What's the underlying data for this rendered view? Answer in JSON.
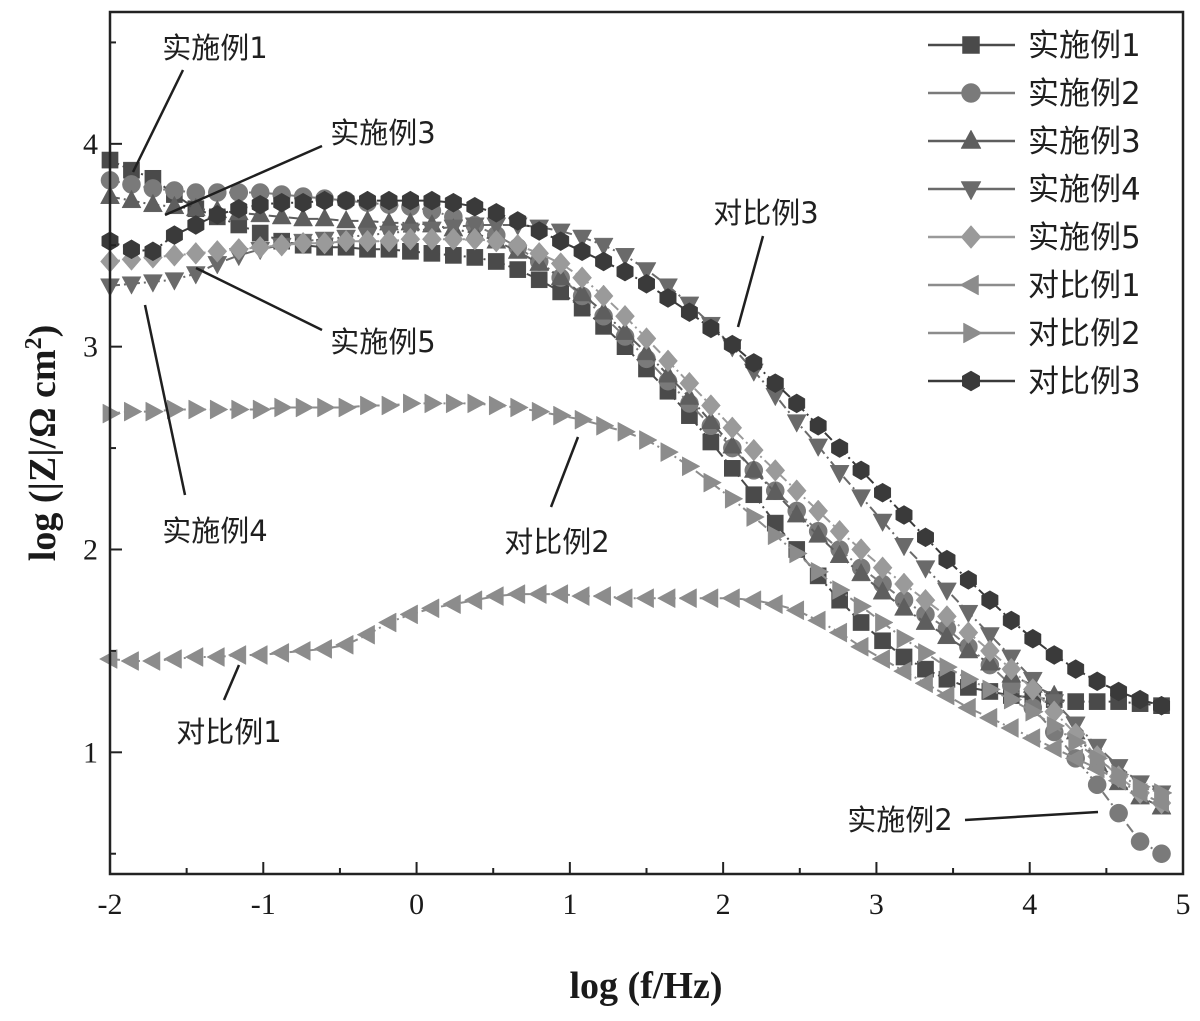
{
  "chart_data": {
    "type": "line",
    "xlabel": "log (f/Hz)",
    "ylabel_main": "log (|Z|/Ω cm",
    "ylabel_sup": "2",
    "ylabel_close": ")",
    "xlim": [
      -2,
      5
    ],
    "ylim": [
      0.4,
      4.65
    ],
    "xticks": [
      -2,
      -1,
      0,
      1,
      2,
      3,
      4,
      5
    ],
    "yticks": [
      1,
      2,
      3,
      4
    ],
    "grid": false,
    "legend_position": "top-right",
    "series": [
      {
        "name": "实施例1",
        "marker": "square",
        "color": "#4a4a4a",
        "x": [
          -2,
          -1.86,
          -1.72,
          -1.58,
          -1.44,
          -1.3,
          -1.16,
          -1.02,
          -0.88,
          -0.74,
          -0.6,
          -0.46,
          -0.32,
          -0.18,
          -0.04,
          0.1,
          0.24,
          0.38,
          0.52,
          0.66,
          0.8,
          0.94,
          1.08,
          1.22,
          1.36,
          1.5,
          1.64,
          1.78,
          1.92,
          2.06,
          2.2,
          2.34,
          2.48,
          2.62,
          2.76,
          2.9,
          3.04,
          3.18,
          3.32,
          3.46,
          3.6,
          3.74,
          3.88,
          4.02,
          4.16,
          4.3,
          4.44,
          4.58,
          4.72,
          4.86
        ],
        "y": [
          3.92,
          3.87,
          3.83,
          3.75,
          3.68,
          3.64,
          3.6,
          3.56,
          3.52,
          3.5,
          3.49,
          3.49,
          3.48,
          3.48,
          3.47,
          3.46,
          3.45,
          3.44,
          3.42,
          3.38,
          3.33,
          3.27,
          3.19,
          3.1,
          3.0,
          2.89,
          2.78,
          2.66,
          2.53,
          2.4,
          2.27,
          2.13,
          2.0,
          1.87,
          1.75,
          1.64,
          1.55,
          1.47,
          1.41,
          1.36,
          1.32,
          1.3,
          1.28,
          1.27,
          1.26,
          1.25,
          1.25,
          1.25,
          1.24,
          1.23
        ]
      },
      {
        "name": "实施例2",
        "marker": "circle",
        "color": "#7a7a7a",
        "x": [
          -2,
          -1.86,
          -1.72,
          -1.58,
          -1.44,
          -1.3,
          -1.16,
          -1.02,
          -0.88,
          -0.74,
          -0.6,
          -0.46,
          -0.32,
          -0.18,
          -0.04,
          0.1,
          0.24,
          0.38,
          0.52,
          0.66,
          0.8,
          0.94,
          1.08,
          1.22,
          1.36,
          1.5,
          1.64,
          1.78,
          1.92,
          2.06,
          2.2,
          2.34,
          2.48,
          2.62,
          2.76,
          2.9,
          3.04,
          3.18,
          3.32,
          3.46,
          3.6,
          3.74,
          3.88,
          4.02,
          4.16,
          4.3,
          4.44,
          4.58,
          4.72,
          4.86
        ],
        "y": [
          3.82,
          3.8,
          3.78,
          3.77,
          3.76,
          3.76,
          3.76,
          3.76,
          3.75,
          3.74,
          3.73,
          3.72,
          3.71,
          3.7,
          3.69,
          3.67,
          3.64,
          3.6,
          3.55,
          3.49,
          3.42,
          3.34,
          3.25,
          3.15,
          3.05,
          2.94,
          2.83,
          2.72,
          2.61,
          2.5,
          2.39,
          2.29,
          2.19,
          2.09,
          2.0,
          1.91,
          1.83,
          1.75,
          1.68,
          1.61,
          1.52,
          1.43,
          1.33,
          1.22,
          1.1,
          0.97,
          0.84,
          0.7,
          0.56,
          0.5
        ]
      },
      {
        "name": "实施例3",
        "marker": "triangle-up",
        "color": "#5e5e5e",
        "x": [
          -2,
          -1.86,
          -1.72,
          -1.58,
          -1.44,
          -1.3,
          -1.16,
          -1.02,
          -0.88,
          -0.74,
          -0.6,
          -0.46,
          -0.32,
          -0.18,
          -0.04,
          0.1,
          0.24,
          0.38,
          0.52,
          0.66,
          0.8,
          0.94,
          1.08,
          1.22,
          1.36,
          1.5,
          1.64,
          1.78,
          1.92,
          2.06,
          2.2,
          2.34,
          2.48,
          2.62,
          2.76,
          2.9,
          3.04,
          3.18,
          3.32,
          3.46,
          3.6,
          3.74,
          3.88,
          4.02,
          4.16,
          4.3,
          4.44,
          4.58,
          4.72,
          4.86
        ],
        "y": [
          3.74,
          3.72,
          3.7,
          3.69,
          3.68,
          3.67,
          3.66,
          3.65,
          3.64,
          3.63,
          3.63,
          3.62,
          3.62,
          3.61,
          3.61,
          3.6,
          3.58,
          3.56,
          3.52,
          3.47,
          3.41,
          3.34,
          3.26,
          3.17,
          3.07,
          2.97,
          2.86,
          2.75,
          2.63,
          2.51,
          2.39,
          2.28,
          2.17,
          2.07,
          1.97,
          1.88,
          1.79,
          1.71,
          1.64,
          1.57,
          1.5,
          1.44,
          1.38,
          1.33,
          1.28,
          1.1,
          0.95,
          0.85,
          0.78,
          0.73
        ]
      },
      {
        "name": "实施例4",
        "marker": "triangle-down",
        "color": "#6a6a6a",
        "x": [
          -2,
          -1.86,
          -1.72,
          -1.58,
          -1.44,
          -1.3,
          -1.16,
          -1.02,
          -0.88,
          -0.74,
          -0.6,
          -0.46,
          -0.32,
          -0.18,
          -0.04,
          0.1,
          0.24,
          0.38,
          0.52,
          0.66,
          0.8,
          0.94,
          1.08,
          1.22,
          1.36,
          1.5,
          1.64,
          1.78,
          1.92,
          2.06,
          2.2,
          2.34,
          2.48,
          2.62,
          2.76,
          2.9,
          3.04,
          3.18,
          3.32,
          3.46,
          3.6,
          3.74,
          3.88,
          4.02,
          4.16,
          4.3,
          4.44,
          4.58,
          4.72,
          4.86
        ],
        "y": [
          3.3,
          3.31,
          3.32,
          3.33,
          3.36,
          3.41,
          3.45,
          3.48,
          3.5,
          3.52,
          3.53,
          3.54,
          3.55,
          3.56,
          3.57,
          3.58,
          3.59,
          3.6,
          3.6,
          3.6,
          3.59,
          3.57,
          3.54,
          3.5,
          3.45,
          3.38,
          3.3,
          3.21,
          3.11,
          3.0,
          2.88,
          2.76,
          2.63,
          2.51,
          2.38,
          2.26,
          2.14,
          2.02,
          1.91,
          1.8,
          1.69,
          1.58,
          1.47,
          1.36,
          1.25,
          1.14,
          1.03,
          0.93,
          0.85,
          0.8
        ]
      },
      {
        "name": "实施例5",
        "marker": "diamond",
        "color": "#9a9a9a",
        "x": [
          -2,
          -1.86,
          -1.72,
          -1.58,
          -1.44,
          -1.3,
          -1.16,
          -1.02,
          -0.88,
          -0.74,
          -0.6,
          -0.46,
          -0.32,
          -0.18,
          -0.04,
          0.1,
          0.24,
          0.38,
          0.52,
          0.66,
          0.8,
          0.94,
          1.08,
          1.22,
          1.36,
          1.5,
          1.64,
          1.78,
          1.92,
          2.06,
          2.2,
          2.34,
          2.48,
          2.62,
          2.76,
          2.9,
          3.04,
          3.18,
          3.32,
          3.46,
          3.6,
          3.74,
          3.88,
          4.02,
          4.16,
          4.3,
          4.44,
          4.58,
          4.72,
          4.86
        ],
        "y": [
          3.42,
          3.43,
          3.44,
          3.45,
          3.46,
          3.47,
          3.48,
          3.49,
          3.5,
          3.51,
          3.51,
          3.52,
          3.52,
          3.52,
          3.53,
          3.53,
          3.53,
          3.53,
          3.52,
          3.5,
          3.46,
          3.41,
          3.34,
          3.25,
          3.15,
          3.04,
          2.93,
          2.82,
          2.71,
          2.6,
          2.49,
          2.39,
          2.29,
          2.19,
          2.09,
          2.0,
          1.91,
          1.83,
          1.75,
          1.67,
          1.59,
          1.5,
          1.41,
          1.31,
          1.2,
          1.09,
          0.98,
          0.88,
          0.8,
          0.75
        ]
      },
      {
        "name": "对比例1",
        "marker": "triangle-left",
        "color": "#8c8c8c",
        "x": [
          -2,
          -1.86,
          -1.72,
          -1.58,
          -1.44,
          -1.3,
          -1.16,
          -1.02,
          -0.88,
          -0.74,
          -0.6,
          -0.46,
          -0.32,
          -0.18,
          -0.04,
          0.1,
          0.24,
          0.38,
          0.52,
          0.66,
          0.8,
          0.94,
          1.08,
          1.22,
          1.36,
          1.5,
          1.64,
          1.78,
          1.92,
          2.06,
          2.2,
          2.34,
          2.48,
          2.62,
          2.76,
          2.9,
          3.04,
          3.18,
          3.32,
          3.46,
          3.6,
          3.74,
          3.88,
          4.02,
          4.16,
          4.3,
          4.44,
          4.58,
          4.72,
          4.86
        ],
        "y": [
          1.46,
          1.45,
          1.45,
          1.46,
          1.47,
          1.47,
          1.48,
          1.48,
          1.49,
          1.5,
          1.51,
          1.53,
          1.58,
          1.64,
          1.68,
          1.71,
          1.73,
          1.75,
          1.77,
          1.78,
          1.78,
          1.78,
          1.77,
          1.77,
          1.76,
          1.76,
          1.76,
          1.76,
          1.76,
          1.76,
          1.75,
          1.73,
          1.7,
          1.65,
          1.59,
          1.52,
          1.46,
          1.4,
          1.34,
          1.28,
          1.22,
          1.17,
          1.12,
          1.07,
          1.02,
          0.97,
          0.92,
          0.86,
          0.8,
          0.75
        ]
      },
      {
        "name": "对比例2",
        "marker": "triangle-right",
        "color": "#8c8c8c",
        "x": [
          -2,
          -1.86,
          -1.72,
          -1.58,
          -1.44,
          -1.3,
          -1.16,
          -1.02,
          -0.88,
          -0.74,
          -0.6,
          -0.46,
          -0.32,
          -0.18,
          -0.04,
          0.1,
          0.24,
          0.38,
          0.52,
          0.66,
          0.8,
          0.94,
          1.08,
          1.22,
          1.36,
          1.5,
          1.64,
          1.78,
          1.92,
          2.06,
          2.2,
          2.34,
          2.48,
          2.62,
          2.76,
          2.9,
          3.04,
          3.18,
          3.32,
          3.46,
          3.6,
          3.74,
          3.88,
          4.02,
          4.16,
          4.3,
          4.44,
          4.58,
          4.72,
          4.86
        ],
        "y": [
          2.67,
          2.68,
          2.68,
          2.69,
          2.69,
          2.69,
          2.69,
          2.69,
          2.7,
          2.7,
          2.7,
          2.7,
          2.71,
          2.71,
          2.72,
          2.72,
          2.72,
          2.72,
          2.71,
          2.7,
          2.68,
          2.66,
          2.64,
          2.61,
          2.58,
          2.54,
          2.48,
          2.41,
          2.33,
          2.25,
          2.16,
          2.07,
          1.98,
          1.89,
          1.8,
          1.72,
          1.64,
          1.56,
          1.49,
          1.42,
          1.36,
          1.31,
          1.26,
          1.2,
          1.13,
          1.05,
          0.97,
          0.89,
          0.83,
          0.8
        ]
      },
      {
        "name": "对比例3",
        "marker": "hexagon",
        "color": "#3a3a3a",
        "x": [
          -2,
          -1.86,
          -1.72,
          -1.58,
          -1.44,
          -1.3,
          -1.16,
          -1.02,
          -0.88,
          -0.74,
          -0.6,
          -0.46,
          -0.32,
          -0.18,
          -0.04,
          0.1,
          0.24,
          0.38,
          0.52,
          0.66,
          0.8,
          0.94,
          1.08,
          1.22,
          1.36,
          1.5,
          1.64,
          1.78,
          1.92,
          2.06,
          2.2,
          2.34,
          2.48,
          2.62,
          2.76,
          2.9,
          3.04,
          3.18,
          3.32,
          3.46,
          3.6,
          3.74,
          3.88,
          4.02,
          4.16,
          4.3,
          4.44,
          4.58,
          4.72,
          4.86
        ],
        "y": [
          3.52,
          3.48,
          3.47,
          3.55,
          3.6,
          3.65,
          3.68,
          3.7,
          3.71,
          3.71,
          3.72,
          3.72,
          3.72,
          3.72,
          3.72,
          3.72,
          3.71,
          3.69,
          3.66,
          3.62,
          3.57,
          3.52,
          3.47,
          3.42,
          3.37,
          3.31,
          3.24,
          3.17,
          3.09,
          3.01,
          2.92,
          2.82,
          2.72,
          2.61,
          2.5,
          2.39,
          2.28,
          2.17,
          2.06,
          1.95,
          1.85,
          1.75,
          1.65,
          1.56,
          1.48,
          1.41,
          1.35,
          1.3,
          1.26,
          1.23
        ]
      }
    ],
    "annotations": [
      {
        "text": "实施例1",
        "target_series": "实施例1"
      },
      {
        "text": "实施例3",
        "target_series": "实施例3"
      },
      {
        "text": "实施例5",
        "target_series": "实施例5"
      },
      {
        "text": "实施例4",
        "target_series": "实施例4"
      },
      {
        "text": "对比例2",
        "target_series": "对比例2"
      },
      {
        "text": "对比例1",
        "target_series": "对比例1"
      },
      {
        "text": "对比例3",
        "target_series": "对比例3"
      },
      {
        "text": "实施例2",
        "target_series": "实施例2"
      }
    ]
  }
}
